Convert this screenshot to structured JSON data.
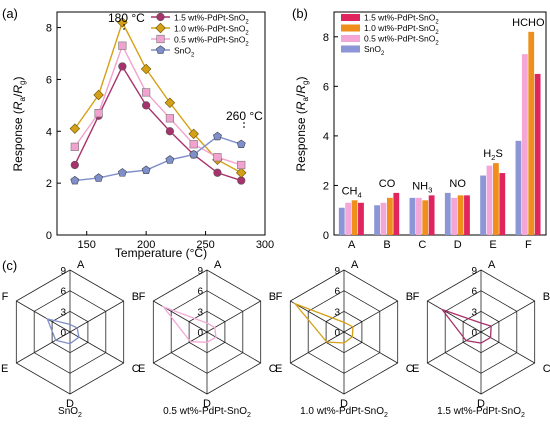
{
  "colors": {
    "c15": "#a8326c",
    "c10": "#d4a017",
    "c05": "#f2a2cf",
    "sno2": "#7e8fc9",
    "bar15": "#e0245e",
    "bar10": "#ef8e1b",
    "bar05": "#f4a6d7",
    "barSno2": "#8c96d6"
  },
  "chart_data": [
    {
      "id": "a",
      "panel_label": "(a)",
      "type": "line",
      "xlabel": "Temperature (°C)",
      "ylabel_main": "Response (",
      "ylabel_ra": "R",
      "ylabel_ra_sub": "a",
      "ylabel_slash": "/",
      "ylabel_rg": "R",
      "ylabel_rg_sub": "g",
      "ylabel_close": ")",
      "xlim": [
        125,
        300
      ],
      "ylim": [
        0,
        8.6
      ],
      "xticks": [
        "150",
        "200",
        "250",
        "300"
      ],
      "yticks": [
        "0",
        "2",
        "4",
        "6",
        "8"
      ],
      "annotations": [
        "180 °C",
        "260 °C"
      ],
      "x": [
        140,
        160,
        180,
        200,
        220,
        240,
        260,
        280
      ],
      "series": [
        {
          "name": "1.5 wt%-PdPt-SnO",
          "sub": "2",
          "values": [
            2.7,
            4.6,
            6.5,
            5.0,
            4.0,
            3.1,
            2.4,
            2.1
          ],
          "marker": "circle"
        },
        {
          "name": "1.0 wt%-PdPt-SnO",
          "sub": "2",
          "values": [
            4.1,
            5.4,
            8.2,
            6.4,
            5.1,
            3.9,
            2.9,
            2.4
          ],
          "marker": "diamond"
        },
        {
          "name": "0.5 wt%-PdPt-SnO",
          "sub": "2",
          "values": [
            3.4,
            4.7,
            7.3,
            5.5,
            4.5,
            3.5,
            3.0,
            2.7
          ],
          "marker": "square"
        },
        {
          "name": "SnO",
          "sub": "2",
          "values": [
            2.1,
            2.2,
            2.4,
            2.5,
            2.9,
            3.1,
            3.8,
            3.5
          ],
          "marker": "pentagon"
        }
      ]
    },
    {
      "id": "b",
      "panel_label": "(b)",
      "type": "bar",
      "ylabel_main": "Response (",
      "ylabel_ra": "R",
      "ylabel_ra_sub": "a",
      "ylabel_slash": "/",
      "ylabel_rg": "R",
      "ylabel_rg_sub": "g",
      "ylabel_close": ")",
      "ylim": [
        0,
        9
      ],
      "yticks": [
        "0",
        "2",
        "4",
        "6",
        "8"
      ],
      "categories": [
        "A",
        "B",
        "C",
        "D",
        "E",
        "F"
      ],
      "gas_labels": [
        {
          "main": "CH",
          "sub": "4"
        },
        {
          "main": "CO",
          "sub": ""
        },
        {
          "main": "NH",
          "sub": "3"
        },
        {
          "main": "NO",
          "sub": ""
        },
        {
          "main": "H",
          "sub": "2",
          "tail": "S"
        },
        {
          "main": "HCHO",
          "sub": ""
        }
      ],
      "series": [
        {
          "name": "SnO",
          "sub": "2",
          "values": [
            1.1,
            1.2,
            1.5,
            1.7,
            2.4,
            3.8
          ]
        },
        {
          "name": "0.5 wt%-PdPt-SnO",
          "sub": "2",
          "values": [
            1.3,
            1.3,
            1.5,
            1.5,
            2.8,
            7.3
          ]
        },
        {
          "name": "1.0 wt%-PdPt-SnO",
          "sub": "2",
          "values": [
            1.4,
            1.5,
            1.4,
            1.6,
            2.9,
            8.2
          ]
        },
        {
          "name": "1.5 wt%-PdPt-SnO",
          "sub": "2",
          "values": [
            1.3,
            1.7,
            1.6,
            1.6,
            2.5,
            6.5
          ]
        }
      ]
    },
    {
      "id": "c",
      "panel_label": "(c)",
      "type": "radar",
      "axes": [
        "A",
        "B",
        "C",
        "D",
        "E",
        "F"
      ],
      "rings": [
        "0",
        "3",
        "6",
        "9"
      ],
      "max": 9,
      "charts": [
        {
          "title": "SnO",
          "sub": "2",
          "values": [
            1.1,
            1.2,
            1.5,
            1.7,
            2.4,
            3.8
          ]
        },
        {
          "title": "0.5 wt%-PdPt-SnO",
          "sub": "2",
          "values": [
            1.3,
            1.3,
            1.5,
            1.5,
            2.8,
            7.3
          ]
        },
        {
          "title": "1.0 wt%-PdPt-SnO",
          "sub": "2",
          "values": [
            1.4,
            1.5,
            1.4,
            1.6,
            2.9,
            8.2
          ]
        },
        {
          "title": "1.5 wt%-PdPt-SnO",
          "sub": "2",
          "values": [
            1.3,
            1.7,
            1.6,
            1.6,
            2.5,
            6.5
          ]
        }
      ]
    }
  ]
}
